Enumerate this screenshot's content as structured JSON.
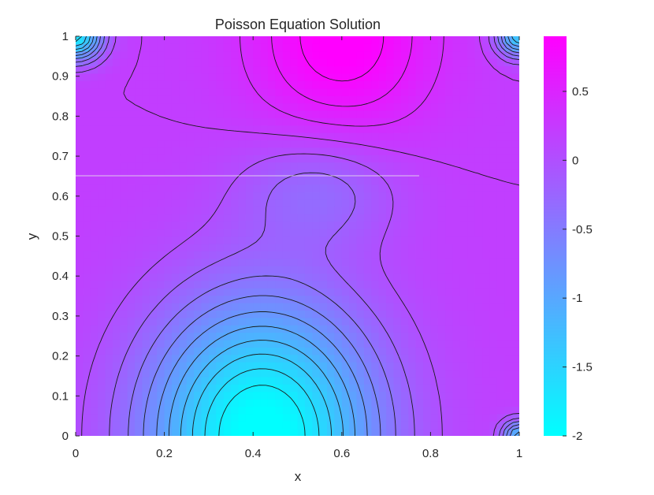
{
  "chart_data": {
    "type": "heatmap",
    "title": "Poisson Equation Solution",
    "xlabel": "x",
    "ylabel": "y",
    "xlim": [
      0,
      1
    ],
    "ylim": [
      0,
      1
    ],
    "x_ticks": [
      "0",
      "0.2",
      "0.4",
      "0.6",
      "0.8",
      "1"
    ],
    "y_ticks": [
      "0",
      "0.1",
      "0.2",
      "0.3",
      "0.4",
      "0.5",
      "0.6",
      "0.7",
      "0.8",
      "0.9",
      "1"
    ],
    "colorbar": {
      "range": [
        -2,
        0.9
      ],
      "ticks": [
        "-2",
        "-1.5",
        "-1",
        "-0.5",
        "0",
        "0.5"
      ],
      "colormap": "cool",
      "low_color": "#00ffff",
      "high_color": "#ff00ff"
    },
    "field": {
      "description_ref": "u(x,y) on unit square; minimum near bottom edge center, maximum near top edge",
      "bottom_min_location": [
        0.42,
        0.0
      ],
      "top_max_location": [
        0.6,
        1.0
      ],
      "min_value": -2.0,
      "max_value": 0.9
    },
    "contour_levels": [
      -1.8,
      -1.6,
      -1.4,
      -1.2,
      -1.0,
      -0.8,
      -0.6,
      -0.4,
      -0.2,
      0.0,
      0.2,
      0.4,
      0.6,
      0.8
    ],
    "grid": false
  }
}
